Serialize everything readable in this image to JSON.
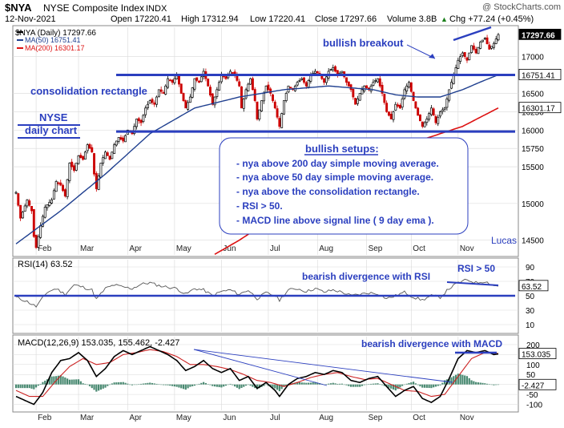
{
  "header": {
    "symbol": "$NYA",
    "name": "NYSE Composite Index",
    "exchange": "INDX",
    "watermark": "@ StockCharts.com",
    "date": "12-Nov-2021",
    "open": "Open 17220.41",
    "high": "High 17312.94",
    "low": "Low 17220.41",
    "close": "Close 17297.66",
    "volume": "Volume 3.8B",
    "change": "Chg +77.24 (+0.45%)",
    "change_arrow": "▲"
  },
  "legend": {
    "price": "$NYA (Daily) 17297.66",
    "ma50": "MA(50) 16751.41",
    "ma200": "MA(200) 16301.17"
  },
  "annotations": {
    "bullish_breakout": "bullish breakout",
    "consolidation": "consolidation rectangle",
    "nyse": "NYSE",
    "daily_chart": "daily chart",
    "author": "Lucas",
    "setups_title": "bullish setups:",
    "setups": [
      "- nya above 200 day simple moving average.",
      "- nya above 50 day simple moving average.",
      "- nya above the consolidation rectangle.",
      "- RSI > 50.",
      "- MACD line above signal line ( 9 day ema )."
    ],
    "rsi_gt_50": "RSI > 50",
    "rsi_divergence": "bearish divergence with RSI",
    "macd_divergence": "bearish divergence with MACD"
  },
  "months": [
    "Feb",
    "Mar",
    "Apr",
    "May",
    "Jun",
    "Jul",
    "Aug",
    "Sep",
    "Oct",
    "Nov"
  ],
  "colors": {
    "price_up": "#000000",
    "price_down": "#cc0000",
    "ma50": "#1f3f8f",
    "ma200": "#dd1111",
    "annotation": "#2b3fbf",
    "macd_line": "#000000",
    "signal_line": "#cc2222",
    "histogram": "#4a8a72",
    "grid": "#d9d9d9"
  },
  "chart_data": [
    {
      "type": "line",
      "title": "NYSE Composite Index",
      "series_name": "$NYA (Daily)",
      "ylim": [
        14300,
        17400
      ],
      "yticks": [
        14500,
        15000,
        15500,
        16000,
        16500,
        17000
      ],
      "ytick_labels": [
        "14500",
        "15000",
        "15500",
        "15750",
        "16000",
        "16250",
        "16500",
        "17000"
      ],
      "ytick_values": [
        14500,
        15000,
        15500,
        15750,
        16000,
        16250,
        16500,
        17000
      ],
      "price_keyframes": [
        [
          0,
          15150
        ],
        [
          2,
          14800
        ],
        [
          5,
          15050
        ],
        [
          7,
          14900
        ],
        [
          8,
          14550
        ],
        [
          9,
          14400
        ],
        [
          11,
          14700
        ],
        [
          13,
          14950
        ],
        [
          16,
          15050
        ],
        [
          18,
          15300
        ],
        [
          20,
          15250
        ],
        [
          22,
          15100
        ],
        [
          24,
          15550
        ],
        [
          26,
          15450
        ],
        [
          28,
          15650
        ],
        [
          30,
          15600
        ],
        [
          32,
          15800
        ],
        [
          34,
          15700
        ],
        [
          35,
          15400
        ],
        [
          36,
          15200
        ],
        [
          38,
          15550
        ],
        [
          40,
          15700
        ],
        [
          42,
          15600
        ],
        [
          44,
          15800
        ],
        [
          46,
          15900
        ],
        [
          48,
          15850
        ],
        [
          50,
          16000
        ],
        [
          52,
          15950
        ],
        [
          54,
          16150
        ],
        [
          56,
          16100
        ],
        [
          58,
          16300
        ],
        [
          60,
          16400
        ],
        [
          62,
          16350
        ],
        [
          64,
          16550
        ],
        [
          66,
          16500
        ],
        [
          68,
          16700
        ],
        [
          70,
          16650
        ],
        [
          72,
          16750
        ],
        [
          74,
          16500
        ],
        [
          76,
          16300
        ],
        [
          78,
          16450
        ],
        [
          80,
          16700
        ],
        [
          82,
          16650
        ],
        [
          84,
          16800
        ],
        [
          86,
          16600
        ],
        [
          88,
          16350
        ],
        [
          90,
          16550
        ],
        [
          92,
          16750
        ],
        [
          94,
          16700
        ],
        [
          96,
          16800
        ],
        [
          98,
          16750
        ],
        [
          100,
          16600
        ],
        [
          101,
          16300
        ],
        [
          103,
          16550
        ],
        [
          105,
          16700
        ],
        [
          107,
          16400
        ],
        [
          108,
          16150
        ],
        [
          110,
          16400
        ],
        [
          112,
          16600
        ],
        [
          114,
          16500
        ],
        [
          116,
          16300
        ],
        [
          118,
          16050
        ],
        [
          120,
          16400
        ],
        [
          122,
          16600
        ],
        [
          124,
          16550
        ],
        [
          126,
          16650
        ],
        [
          128,
          16700
        ],
        [
          130,
          16600
        ],
        [
          132,
          16750
        ],
        [
          134,
          16800
        ],
        [
          136,
          16750
        ],
        [
          138,
          16650
        ],
        [
          140,
          16800
        ],
        [
          142,
          16850
        ],
        [
          144,
          16750
        ],
        [
          146,
          16800
        ],
        [
          148,
          16650
        ],
        [
          150,
          16550
        ],
        [
          152,
          16350
        ],
        [
          154,
          16500
        ],
        [
          156,
          16600
        ],
        [
          158,
          16550
        ],
        [
          160,
          16650
        ],
        [
          162,
          16700
        ],
        [
          164,
          16500
        ],
        [
          166,
          16250
        ],
        [
          168,
          16150
        ],
        [
          170,
          16350
        ],
        [
          172,
          16300
        ],
        [
          174,
          16550
        ],
        [
          176,
          16650
        ],
        [
          178,
          16400
        ],
        [
          180,
          16200
        ],
        [
          182,
          16050
        ],
        [
          184,
          16150
        ],
        [
          186,
          16300
        ],
        [
          188,
          16100
        ],
        [
          190,
          16250
        ],
        [
          192,
          16300
        ],
        [
          194,
          16550
        ],
        [
          196,
          16750
        ],
        [
          198,
          16950
        ],
        [
          200,
          17050
        ],
        [
          202,
          16950
        ],
        [
          204,
          17150
        ],
        [
          206,
          17050
        ],
        [
          208,
          17200
        ],
        [
          210,
          17250
        ],
        [
          212,
          17100
        ],
        [
          214,
          17180
        ],
        [
          216,
          17300
        ]
      ],
      "ma50_keyframes": [
        [
          0,
          14450
        ],
        [
          20,
          14900
        ],
        [
          40,
          15400
        ],
        [
          60,
          15950
        ],
        [
          80,
          16300
        ],
        [
          100,
          16450
        ],
        [
          120,
          16550
        ],
        [
          140,
          16600
        ],
        [
          160,
          16550
        ],
        [
          170,
          16480
        ],
        [
          180,
          16450
        ],
        [
          190,
          16450
        ],
        [
          200,
          16550
        ],
        [
          210,
          16680
        ],
        [
          216,
          16751
        ]
      ],
      "ma200_keyframes": [
        [
          80,
          14150
        ],
        [
          100,
          14500
        ],
        [
          120,
          14900
        ],
        [
          140,
          15250
        ],
        [
          160,
          15600
        ],
        [
          180,
          15850
        ],
        [
          200,
          16050
        ],
        [
          216,
          16301
        ]
      ],
      "last_close": 17297.66,
      "ma50_last": 16751.41,
      "ma200_last": 16301.17,
      "rectangle_top": 16751,
      "rectangle_bottom": 15980
    },
    {
      "type": "line",
      "title": "RSI(14) 63.52",
      "ylim": [
        0,
        100
      ],
      "yticks": [
        10,
        30,
        50,
        70,
        90
      ],
      "last_value": 63.52,
      "threshold": 50,
      "keyframes": [
        [
          0,
          48
        ],
        [
          5,
          42
        ],
        [
          9,
          35
        ],
        [
          14,
          55
        ],
        [
          18,
          60
        ],
        [
          22,
          52
        ],
        [
          26,
          65
        ],
        [
          30,
          62
        ],
        [
          34,
          58
        ],
        [
          36,
          45
        ],
        [
          40,
          60
        ],
        [
          44,
          65
        ],
        [
          48,
          62
        ],
        [
          52,
          60
        ],
        [
          56,
          66
        ],
        [
          60,
          68
        ],
        [
          64,
          64
        ],
        [
          68,
          62
        ],
        [
          72,
          60
        ],
        [
          76,
          52
        ],
        [
          80,
          60
        ],
        [
          84,
          58
        ],
        [
          88,
          50
        ],
        [
          92,
          56
        ],
        [
          96,
          58
        ],
        [
          100,
          52
        ],
        [
          104,
          58
        ],
        [
          108,
          46
        ],
        [
          112,
          54
        ],
        [
          116,
          50
        ],
        [
          118,
          44
        ],
        [
          122,
          58
        ],
        [
          126,
          60
        ],
        [
          130,
          56
        ],
        [
          134,
          60
        ],
        [
          138,
          55
        ],
        [
          142,
          58
        ],
        [
          146,
          55
        ],
        [
          150,
          50
        ],
        [
          154,
          52
        ],
        [
          158,
          54
        ],
        [
          162,
          53
        ],
        [
          166,
          46
        ],
        [
          170,
          50
        ],
        [
          174,
          55
        ],
        [
          178,
          48
        ],
        [
          182,
          44
        ],
        [
          186,
          50
        ],
        [
          190,
          48
        ],
        [
          194,
          60
        ],
        [
          198,
          68
        ],
        [
          202,
          72
        ],
        [
          206,
          68
        ],
        [
          210,
          70
        ],
        [
          214,
          64
        ],
        [
          216,
          63.52
        ]
      ]
    },
    {
      "type": "line",
      "title": "MACD(12,26,9) 153.035, 155.462, -2.427",
      "ylim": [
        -130,
        240
      ],
      "yticks": [
        -100,
        -50,
        0,
        50,
        100,
        150,
        200
      ],
      "macd_last": 153.035,
      "signal_last": 155.462,
      "histogram_last": -2.427,
      "macd_keyframes": [
        [
          0,
          -60
        ],
        [
          4,
          -80
        ],
        [
          8,
          -100
        ],
        [
          12,
          -40
        ],
        [
          16,
          60
        ],
        [
          20,
          120
        ],
        [
          24,
          130
        ],
        [
          28,
          160
        ],
        [
          32,
          120
        ],
        [
          36,
          40
        ],
        [
          40,
          80
        ],
        [
          44,
          140
        ],
        [
          48,
          170
        ],
        [
          52,
          150
        ],
        [
          56,
          170
        ],
        [
          60,
          190
        ],
        [
          64,
          170
        ],
        [
          68,
          150
        ],
        [
          72,
          120
        ],
        [
          76,
          70
        ],
        [
          80,
          90
        ],
        [
          84,
          120
        ],
        [
          88,
          80
        ],
        [
          92,
          60
        ],
        [
          96,
          80
        ],
        [
          100,
          20
        ],
        [
          104,
          40
        ],
        [
          108,
          -20
        ],
        [
          112,
          10
        ],
        [
          116,
          -30
        ],
        [
          118,
          -60
        ],
        [
          122,
          0
        ],
        [
          126,
          30
        ],
        [
          130,
          40
        ],
        [
          134,
          60
        ],
        [
          138,
          50
        ],
        [
          142,
          70
        ],
        [
          146,
          60
        ],
        [
          150,
          20
        ],
        [
          154,
          10
        ],
        [
          158,
          30
        ],
        [
          162,
          40
        ],
        [
          166,
          -10
        ],
        [
          170,
          -60
        ],
        [
          174,
          -30
        ],
        [
          178,
          -10
        ],
        [
          182,
          -70
        ],
        [
          186,
          -90
        ],
        [
          190,
          -60
        ],
        [
          194,
          30
        ],
        [
          198,
          130
        ],
        [
          202,
          170
        ],
        [
          206,
          160
        ],
        [
          210,
          170
        ],
        [
          214,
          150
        ],
        [
          216,
          153
        ]
      ],
      "signal_keyframes": [
        [
          0,
          -30
        ],
        [
          6,
          -60
        ],
        [
          12,
          -60
        ],
        [
          18,
          20
        ],
        [
          24,
          90
        ],
        [
          30,
          130
        ],
        [
          36,
          100
        ],
        [
          42,
          110
        ],
        [
          48,
          150
        ],
        [
          54,
          160
        ],
        [
          60,
          175
        ],
        [
          66,
          165
        ],
        [
          72,
          140
        ],
        [
          78,
          100
        ],
        [
          84,
          100
        ],
        [
          90,
          90
        ],
        [
          96,
          75
        ],
        [
          102,
          50
        ],
        [
          108,
          20
        ],
        [
          114,
          10
        ],
        [
          120,
          -10
        ],
        [
          126,
          10
        ],
        [
          132,
          35
        ],
        [
          138,
          50
        ],
        [
          144,
          60
        ],
        [
          150,
          40
        ],
        [
          156,
          25
        ],
        [
          162,
          30
        ],
        [
          168,
          0
        ],
        [
          174,
          -30
        ],
        [
          180,
          -35
        ],
        [
          186,
          -60
        ],
        [
          192,
          -50
        ],
        [
          198,
          40
        ],
        [
          204,
          130
        ],
        [
          210,
          160
        ],
        [
          216,
          155
        ]
      ]
    }
  ]
}
